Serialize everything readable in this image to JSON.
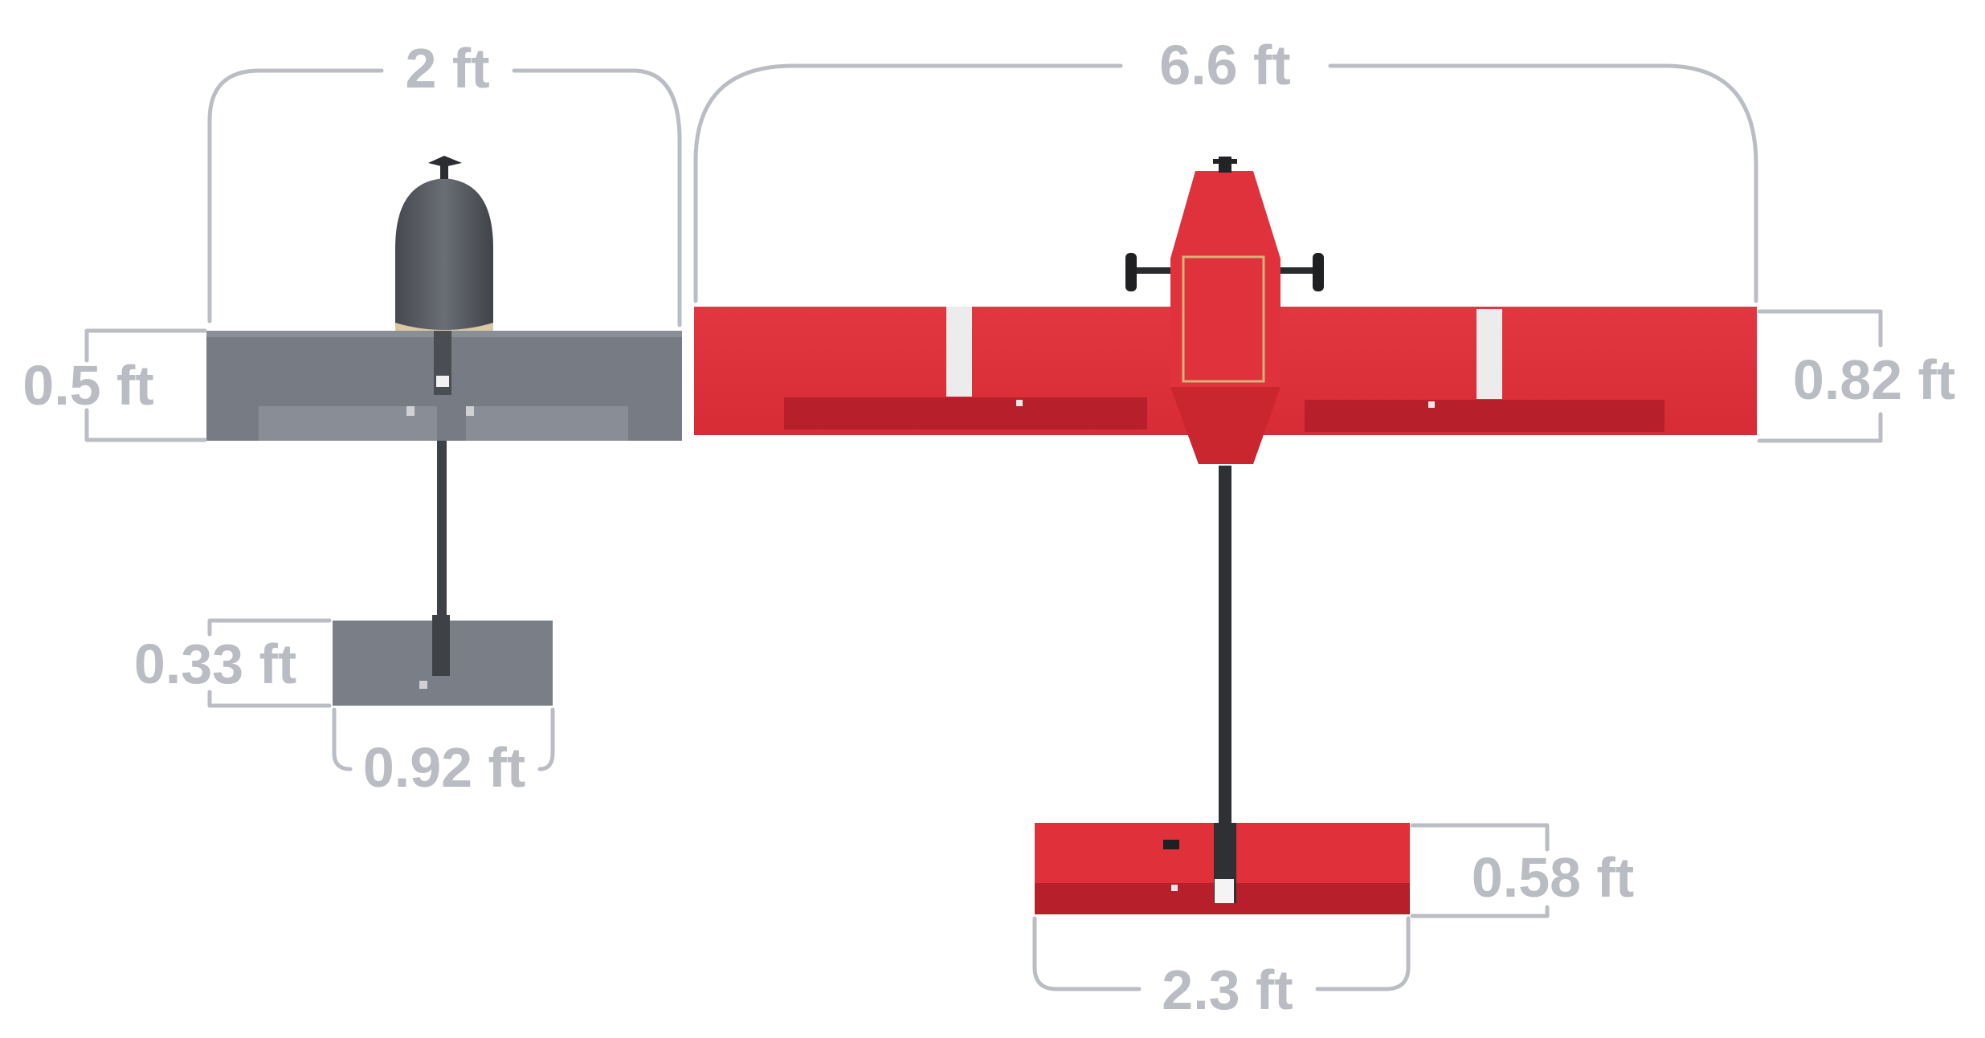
{
  "colors": {
    "dimension": "#babdc3",
    "small_aircraft": "#767b84",
    "small_aircraft_dark": "#5f636b",
    "large_aircraft": "#e0303a",
    "large_aircraft_dark": "#b41e28",
    "background": "#ffffff"
  },
  "small_aircraft": {
    "wingspan": "2 ft",
    "wing_chord": "0.5 ft",
    "tail_chord": "0.33 ft",
    "tail_span": "0.92 ft"
  },
  "large_aircraft": {
    "wingspan": "6.6 ft",
    "wing_chord": "0.82 ft",
    "tail_chord": "0.58 ft",
    "tail_span": "2.3 ft"
  }
}
